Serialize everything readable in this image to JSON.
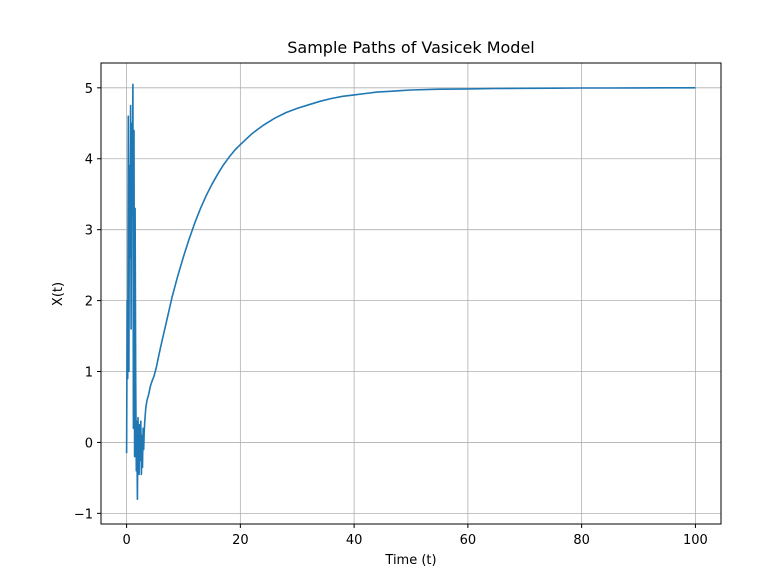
{
  "chart_data": {
    "type": "line",
    "title": "Sample Paths of Vasicek Model",
    "xlabel": "Time (t)",
    "ylabel": "X(t)",
    "xlim": [
      -4.5,
      104.5
    ],
    "ylim": [
      -1.15,
      5.35
    ],
    "xticks": [
      0,
      20,
      40,
      60,
      80,
      100
    ],
    "yticks": [
      -1,
      0,
      1,
      2,
      3,
      4,
      5
    ],
    "xtick_labels": [
      "0",
      "20",
      "40",
      "60",
      "80",
      "100"
    ],
    "ytick_labels": [
      "−1",
      "0",
      "1",
      "2",
      "3",
      "4",
      "5"
    ],
    "grid": true,
    "legend": "none",
    "colors": {
      "line": "#1f77b4",
      "grid": "#b0b0b0",
      "axes": "#000000"
    },
    "series": [
      {
        "x": [
          0.0,
          0.1,
          0.2,
          0.3,
          0.4,
          0.5,
          0.6,
          0.7,
          0.8,
          0.9,
          1.0,
          1.1,
          1.2,
          1.3,
          1.4,
          1.5,
          1.6,
          1.7,
          1.8,
          1.9,
          2.0,
          2.1,
          2.2,
          2.3,
          2.4,
          2.5,
          2.6,
          2.7,
          2.8,
          2.9,
          3.0,
          3.1,
          3.2,
          3.3,
          3.4,
          3.5,
          3.6,
          3.8,
          4.0,
          4.2,
          4.5,
          4.8,
          5.2,
          5.6,
          6.0,
          7.0,
          8.0,
          9.0,
          10.0,
          11.0,
          12.0,
          13.0,
          14.0,
          15.0,
          16.0,
          17.0,
          18.0,
          19.0,
          20.0,
          22.0,
          24.0,
          26.0,
          28.0,
          30.0,
          32.0,
          34.0,
          36.0,
          38.0,
          40.0,
          42.0,
          44.0,
          46.0,
          48.0,
          50.0,
          55.0,
          60.0,
          65.0,
          70.0,
          75.0,
          80.0,
          85.0,
          90.0,
          95.0,
          100.0
        ],
        "y": [
          -0.15,
          2.0,
          0.9,
          4.6,
          1.0,
          3.9,
          2.6,
          4.75,
          1.6,
          4.5,
          3.2,
          5.05,
          0.2,
          4.4,
          -0.2,
          3.3,
          0.9,
          -0.4,
          0.3,
          -0.8,
          0.35,
          -0.1,
          -0.45,
          0.25,
          -0.25,
          0.3,
          -0.45,
          0.1,
          -0.35,
          0.2,
          -0.1,
          0.15,
          0.3,
          0.42,
          0.5,
          0.55,
          0.6,
          0.65,
          0.72,
          0.8,
          0.87,
          0.93,
          1.05,
          1.2,
          1.35,
          1.7,
          2.05,
          2.35,
          2.62,
          2.87,
          3.1,
          3.3,
          3.48,
          3.64,
          3.78,
          3.91,
          4.02,
          4.12,
          4.2,
          4.35,
          4.47,
          4.57,
          4.65,
          4.71,
          4.76,
          4.81,
          4.85,
          4.88,
          4.9,
          4.92,
          4.94,
          4.95,
          4.96,
          4.97,
          4.98,
          4.985,
          4.99,
          4.993,
          4.995,
          4.997,
          4.998,
          4.999,
          5.0,
          5.0
        ]
      }
    ]
  }
}
